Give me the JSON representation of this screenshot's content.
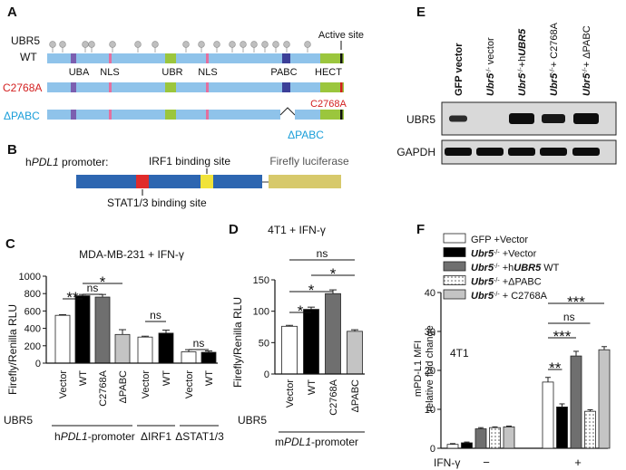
{
  "panels": {
    "A": {
      "label": "A",
      "protein": "UBR5",
      "active_site": "Active site",
      "rows": [
        {
          "name": "WT",
          "color": "#111111"
        },
        {
          "name": "C2768A",
          "color": "#d32020"
        },
        {
          "name": "ΔPABC",
          "color": "#1a9ed9"
        }
      ],
      "domains": [
        "UBA",
        "NLS",
        "UBR",
        "NLS",
        "PABC",
        "HECT"
      ],
      "mutation_labels": {
        "c2768a": "C2768A",
        "dpabc": "ΔPABC"
      },
      "colors": {
        "bar": "#8fc3ea",
        "uba": "#7b5fb0",
        "nls": "#e3709f",
        "ubr": "#9bc63d",
        "pabc": "#3b3f98",
        "hect": "#9bc63d",
        "lollipop": "#bfbfbf"
      }
    },
    "B": {
      "label": "B",
      "promoter_prefix": "h",
      "promoter_gene": "PDL1",
      "promoter_suffix": " promoter:",
      "irf1": "IRF1 binding site",
      "stat": "STAT1/3 binding site",
      "luciferase": "Firefly luciferase",
      "colors": {
        "promoter": "#2d66b1",
        "stat": "#e02b2b",
        "irf1": "#f1e33a",
        "luc": "#d7c96b"
      }
    },
    "C": {
      "label": "C",
      "chart_data": {
        "type": "bar",
        "title": "MDA-MB-231 + IFN-γ",
        "ylabel": "Firefly/Renilla RLU",
        "ylim": [
          0,
          1000
        ],
        "yticks": [
          "0",
          "200",
          "400",
          "600",
          "800",
          "1000"
        ],
        "row_label": "UBR5",
        "categories": [
          "Vector",
          "WT",
          "C2768A",
          "ΔPABC",
          "Vector",
          "WT",
          "Vector",
          "WT"
        ],
        "values": [
          550,
          775,
          760,
          330,
          300,
          345,
          130,
          125
        ],
        "errors": [
          8,
          15,
          30,
          55,
          10,
          35,
          25,
          15
        ],
        "fills": [
          "#ffffff",
          "#000000",
          "#6f6f6f",
          "#c4c4c4",
          "#ffffff",
          "#000000",
          "#ffffff",
          "#000000"
        ],
        "groups": [
          {
            "prefix": "h",
            "gene": "PDL1",
            "suffix": "-promoter"
          },
          {
            "text": "ΔIRF1"
          },
          {
            "text": "ΔSTAT1/3"
          }
        ],
        "significance": [
          "**",
          "ns",
          "*",
          "ns",
          "ns"
        ]
      }
    },
    "D": {
      "label": "D",
      "chart_data": {
        "type": "bar",
        "title": "4T1 + IFN-γ",
        "ylabel": "Firefly/Renilla RLU",
        "ylim": [
          0,
          150
        ],
        "yticks": [
          "0",
          "50",
          "100",
          "150"
        ],
        "row_label": "UBR5",
        "categories": [
          "Vector",
          "WT",
          "C2768A",
          "ΔPABC"
        ],
        "values": [
          76,
          103,
          128,
          68
        ],
        "errors": [
          1.5,
          3.5,
          6,
          2.5
        ],
        "fills": [
          "#ffffff",
          "#000000",
          "#6f6f6f",
          "#c4c4c4"
        ],
        "group": {
          "prefix": "m",
          "gene": "PDL1",
          "suffix": "-promoter"
        },
        "significance": [
          "ns",
          "*",
          "*",
          "*"
        ]
      }
    },
    "E": {
      "label": "E",
      "lanes": [
        {
          "parts": [
            "GFP vector"
          ]
        },
        {
          "parts": [
            "Ubr5",
            "-/-",
            " vector"
          ]
        },
        {
          "parts": [
            "Ubr5",
            "-/-",
            "+h",
            "UBR5"
          ]
        },
        {
          "parts": [
            "Ubr5",
            "-/-",
            "+ C2768A"
          ]
        },
        {
          "parts": [
            "Ubr5",
            "-/-",
            "+ ΔPABC"
          ]
        }
      ],
      "blots": [
        "UBR5",
        "GAPDH"
      ]
    },
    "F": {
      "label": "F",
      "chart_data": {
        "type": "bar",
        "annotation": "4T1",
        "ylabel": "mPD-L1 MFI relative fold change",
        "ylabel_lines": [
          "mPD-L1 MFI",
          "relative fold change"
        ],
        "ylim": [
          0,
          40
        ],
        "yticks": [
          "0",
          "10",
          "20",
          "30",
          "40"
        ],
        "xlabel": "IFN-γ",
        "groups": [
          "−",
          "+"
        ],
        "series": [
          {
            "name": "GFP +Vector",
            "values": [
              1.0,
              17.0
            ],
            "errors": [
              0.2,
              1.2
            ]
          },
          {
            "name": "Ubr5-/- +Vector",
            "values": [
              1.4,
              10.6
            ],
            "errors": [
              0.2,
              0.8
            ]
          },
          {
            "name": "Ubr5-/- +hUBR5 WT",
            "values": [
              5.0,
              23.7
            ],
            "errors": [
              0.3,
              1.2
            ]
          },
          {
            "name": "Ubr5-/- +ΔPABC",
            "values": [
              5.3,
              9.5
            ],
            "errors": [
              0.2,
              0.4
            ]
          },
          {
            "name": "Ubr5-/- + C2768A",
            "values": [
              5.5,
              25.3
            ],
            "errors": [
              0.2,
              0.8
            ]
          }
        ],
        "legend": [
          {
            "parts": [
              "GFP +Vector"
            ]
          },
          {
            "parts": [
              "Ubr5",
              "-/-",
              " +Vector"
            ]
          },
          {
            "parts": [
              "Ubr5",
              "-/-",
              " +h",
              "UBR5",
              " WT"
            ]
          },
          {
            "parts": [
              "Ubr5",
              "-/-",
              " +ΔPABC"
            ]
          },
          {
            "parts": [
              "Ubr5",
              "-/-",
              " + C2768A"
            ]
          }
        ],
        "fills": [
          "#ffffff",
          "#000000",
          "#6f6f6f",
          "dots",
          "#c4c4c4"
        ],
        "significance": [
          "**",
          "***",
          "ns",
          "***"
        ]
      }
    }
  }
}
